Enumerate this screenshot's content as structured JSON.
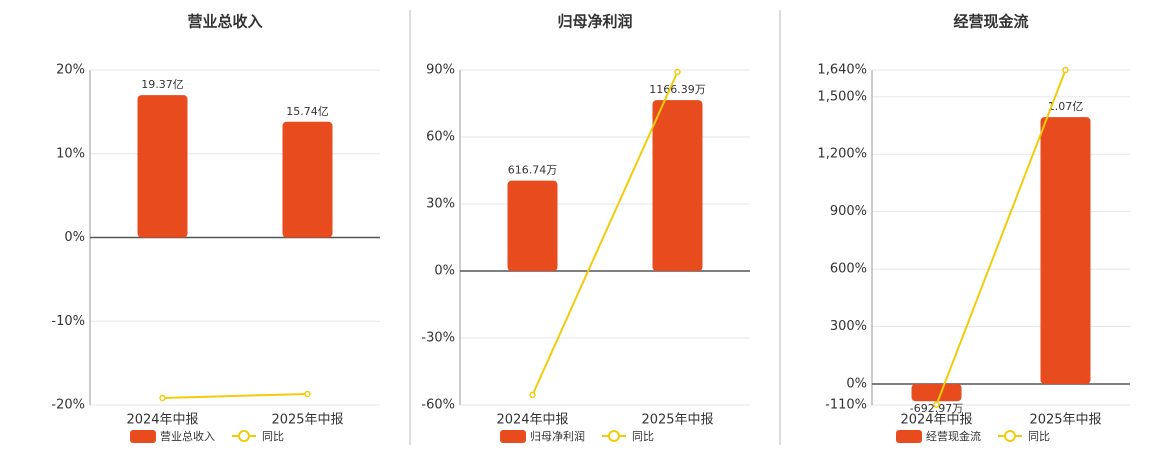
{
  "chart_data": [
    {
      "type": "bar",
      "title": "营业总收入",
      "categories": [
        "2024年中报",
        "2025年中报"
      ],
      "series": [
        {
          "name": "营业总收入",
          "color": "#e84c1e",
          "values": [
            1937000000,
            1574000000
          ],
          "value_labels": [
            "19.37亿",
            "15.74亿"
          ]
        },
        {
          "name": "同比",
          "color": "#f2cc0c",
          "type": "line",
          "values": [
            -19.16,
            -18.68
          ]
        }
      ],
      "ylim": [
        -20,
        20
      ],
      "yticks": [
        {
          "value": -20,
          "label": "-20%"
        },
        {
          "value": -10,
          "label": "-10%"
        },
        {
          "value": 0,
          "label": "0%"
        },
        {
          "value": 10,
          "label": "10%"
        },
        {
          "value": 20,
          "label": "20%"
        }
      ],
      "grid": true
    },
    {
      "type": "bar",
      "title": "归母净利润",
      "categories": [
        "2024年中报",
        "2025年中报"
      ],
      "series": [
        {
          "name": "归母净利润",
          "color": "#e84c1e",
          "values": [
            6167400,
            11663900
          ],
          "value_labels": [
            "616.74万",
            "1166.39万"
          ]
        },
        {
          "name": "同比",
          "color": "#f2cc0c",
          "type": "line",
          "values": [
            -55.5,
            89.1
          ]
        }
      ],
      "ylim": [
        -60,
        90
      ],
      "yticks": [
        {
          "value": -60,
          "label": "-60%"
        },
        {
          "value": -30,
          "label": "-30%"
        },
        {
          "value": 0,
          "label": "0%"
        },
        {
          "value": 30,
          "label": "30%"
        },
        {
          "value": 60,
          "label": "60%"
        },
        {
          "value": 90,
          "label": "90%"
        }
      ],
      "grid": true
    },
    {
      "type": "bar",
      "title": "经营现金流",
      "categories": [
        "2024年中报",
        "2025年中报"
      ],
      "series": [
        {
          "name": "经营现金流",
          "color": "#e84c1e",
          "values": [
            -6929700,
            107000000
          ],
          "value_labels": [
            "-692.97万",
            "1.07亿"
          ]
        },
        {
          "name": "同比",
          "color": "#f2cc0c",
          "type": "line",
          "values": [
            -108,
            1640
          ]
        }
      ],
      "ylim": [
        -110,
        1640
      ],
      "yticks": [
        {
          "value": -110,
          "label": "-110%"
        },
        {
          "value": 0,
          "label": "0%"
        },
        {
          "value": 300,
          "label": "300%"
        },
        {
          "value": 600,
          "label": "600%"
        },
        {
          "value": 900,
          "label": "900%"
        },
        {
          "value": 1200,
          "label": "1,200%"
        },
        {
          "value": 1500,
          "label": "1,500%"
        },
        {
          "value": 1640,
          "label": "1,640%"
        }
      ],
      "grid": true
    }
  ]
}
